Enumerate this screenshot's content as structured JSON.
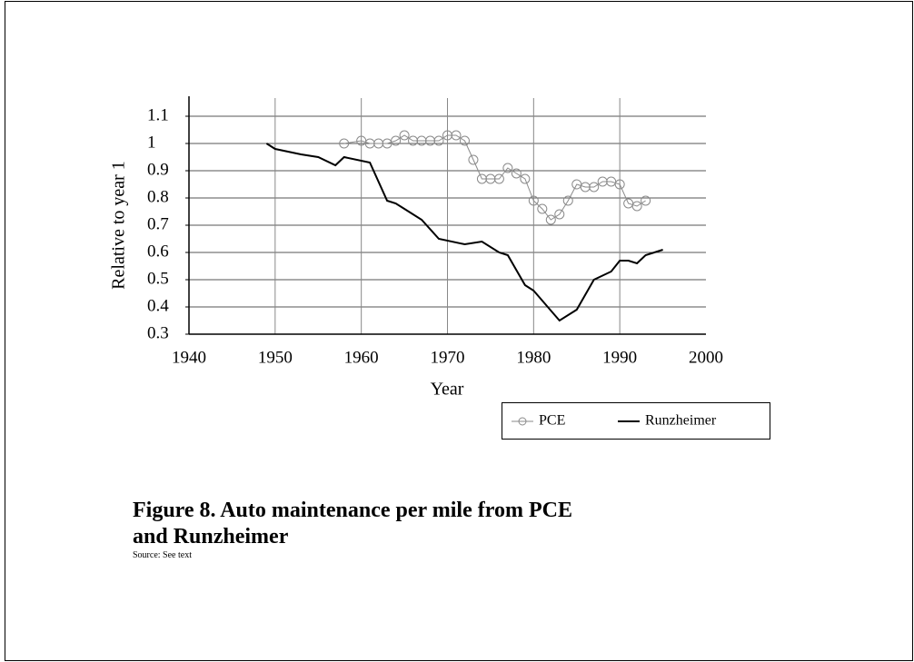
{
  "chart_data": {
    "type": "line",
    "title": "Figure 8. Auto maintenance per mile from PCE",
    "title_line2": "and Runzheimer",
    "source": "Source: See text",
    "xlabel": "Year",
    "ylabel": "Relative to year 1",
    "xlim": [
      1940,
      2000
    ],
    "xticks": [
      1940,
      1950,
      1960,
      1970,
      1980,
      1990,
      2000
    ],
    "ylim": [
      0.3,
      1.1
    ],
    "yticks": [
      1.1,
      1,
      0.9,
      0.8,
      0.7,
      0.6,
      0.5,
      0.4,
      0.3
    ],
    "grid": true,
    "legend": "bottom-right",
    "series": [
      {
        "name": "PCE",
        "color": "#8a8a8a",
        "marker": "circle",
        "x": [
          1958,
          1960,
          1961,
          1962,
          1963,
          1964,
          1965,
          1966,
          1967,
          1968,
          1969,
          1970,
          1971,
          1972,
          1973,
          1974,
          1975,
          1976,
          1977,
          1978,
          1979,
          1980,
          1981,
          1982,
          1983,
          1984,
          1985,
          1986,
          1987,
          1988,
          1989,
          1990,
          1991,
          1992,
          1993
        ],
        "values": [
          1.0,
          1.01,
          1.0,
          1.0,
          1.0,
          1.01,
          1.03,
          1.01,
          1.01,
          1.01,
          1.01,
          1.03,
          1.03,
          1.01,
          0.94,
          0.87,
          0.87,
          0.87,
          0.91,
          0.89,
          0.87,
          0.79,
          0.76,
          0.72,
          0.74,
          0.79,
          0.85,
          0.84,
          0.84,
          0.86,
          0.86,
          0.85,
          0.78,
          0.77,
          0.79
        ]
      },
      {
        "name": "Runzheimer",
        "color": "#000000",
        "x": [
          1949,
          1950,
          1953,
          1955,
          1957,
          1958,
          1961,
          1963,
          1964,
          1965,
          1967,
          1969,
          1972,
          1974,
          1976,
          1977,
          1979,
          1980,
          1983,
          1985,
          1987,
          1989,
          1990,
          1991,
          1992,
          1993,
          1995
        ],
        "values": [
          1.0,
          0.98,
          0.96,
          0.95,
          0.92,
          0.95,
          0.93,
          0.79,
          0.78,
          0.76,
          0.72,
          0.65,
          0.63,
          0.64,
          0.6,
          0.59,
          0.48,
          0.46,
          0.35,
          0.39,
          0.5,
          0.53,
          0.57,
          0.57,
          0.56,
          0.59,
          0.61
        ]
      }
    ]
  }
}
